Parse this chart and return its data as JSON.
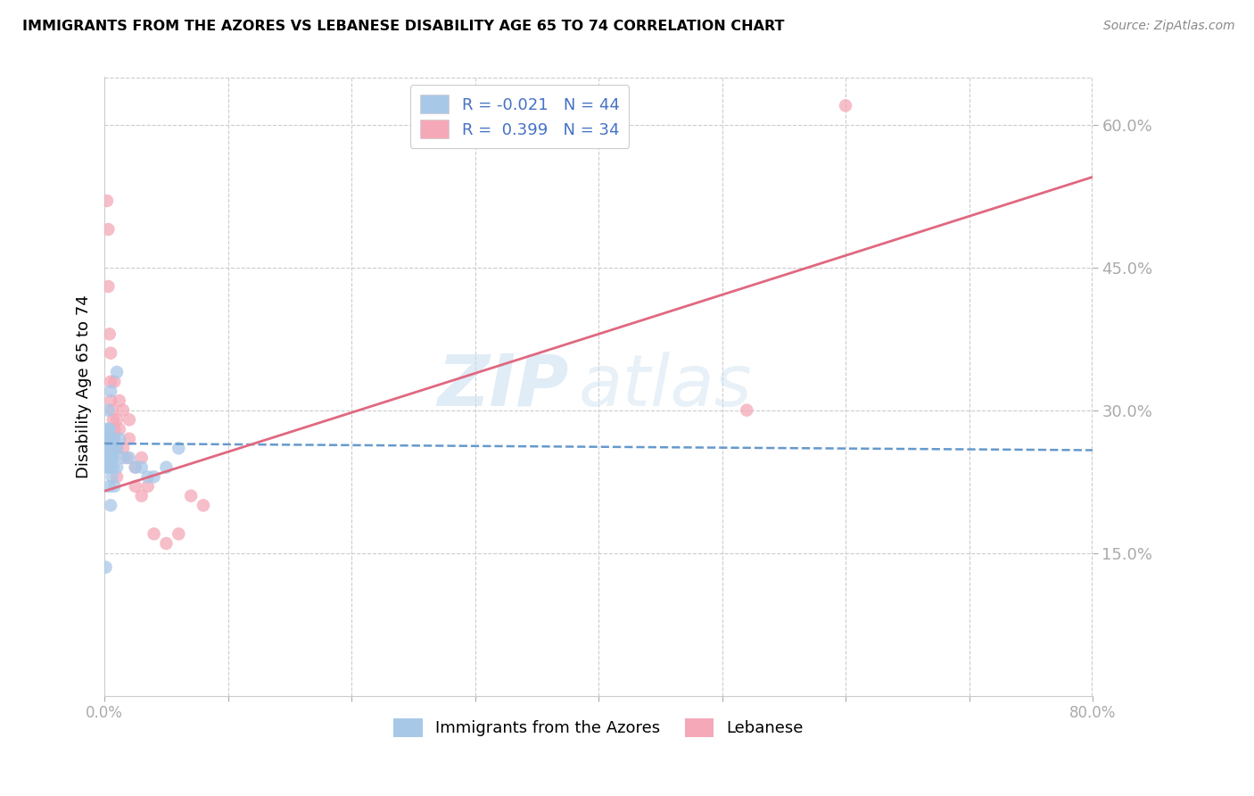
{
  "title": "IMMIGRANTS FROM THE AZORES VS LEBANESE DISABILITY AGE 65 TO 74 CORRELATION CHART",
  "source": "Source: ZipAtlas.com",
  "ylabel": "Disability Age 65 to 74",
  "xmin": 0.0,
  "xmax": 0.8,
  "ymin": 0.0,
  "ymax": 0.65,
  "yticks": [
    0.15,
    0.3,
    0.45,
    0.6
  ],
  "ytick_labels": [
    "15.0%",
    "30.0%",
    "45.0%",
    "60.0%"
  ],
  "xticks": [
    0.0,
    0.1,
    0.2,
    0.3,
    0.4,
    0.5,
    0.6,
    0.7,
    0.8
  ],
  "xtick_labels": [
    "0.0%",
    "",
    "",
    "",
    "",
    "",
    "",
    "",
    "80.0%"
  ],
  "grid_color": "#cccccc",
  "watermark_zip": "ZIP",
  "watermark_atlas": "atlas",
  "legend_R1": "-0.021",
  "legend_N1": "44",
  "legend_R2": "0.399",
  "legend_N2": "34",
  "color_azores": "#a8c8e8",
  "color_lebanese": "#f4a8b8",
  "color_azores_line": "#6699cc",
  "color_lebanese_line": "#e06880",
  "azores_line_x": [
    0.0,
    0.8
  ],
  "azores_line_y": [
    0.265,
    0.258
  ],
  "lebanese_line_x": [
    0.0,
    0.8
  ],
  "lebanese_line_y": [
    0.215,
    0.545
  ],
  "azores_x": [
    0.001,
    0.001,
    0.001,
    0.002,
    0.002,
    0.002,
    0.002,
    0.003,
    0.003,
    0.003,
    0.003,
    0.003,
    0.003,
    0.004,
    0.004,
    0.004,
    0.004,
    0.004,
    0.005,
    0.005,
    0.005,
    0.005,
    0.005,
    0.006,
    0.006,
    0.006,
    0.006,
    0.007,
    0.007,
    0.007,
    0.008,
    0.008,
    0.01,
    0.01,
    0.01,
    0.012,
    0.015,
    0.02,
    0.025,
    0.03,
    0.035,
    0.04,
    0.05,
    0.06
  ],
  "azores_y": [
    0.135,
    0.25,
    0.27,
    0.24,
    0.26,
    0.27,
    0.28,
    0.24,
    0.25,
    0.26,
    0.27,
    0.28,
    0.3,
    0.22,
    0.25,
    0.26,
    0.27,
    0.28,
    0.2,
    0.24,
    0.25,
    0.26,
    0.32,
    0.23,
    0.25,
    0.26,
    0.27,
    0.24,
    0.25,
    0.27,
    0.22,
    0.26,
    0.24,
    0.26,
    0.34,
    0.27,
    0.25,
    0.25,
    0.24,
    0.24,
    0.23,
    0.23,
    0.24,
    0.26
  ],
  "lebanese_x": [
    0.002,
    0.003,
    0.003,
    0.004,
    0.005,
    0.005,
    0.005,
    0.006,
    0.007,
    0.008,
    0.008,
    0.008,
    0.01,
    0.01,
    0.01,
    0.012,
    0.012,
    0.015,
    0.015,
    0.018,
    0.02,
    0.02,
    0.025,
    0.025,
    0.03,
    0.03,
    0.035,
    0.04,
    0.05,
    0.06,
    0.07,
    0.08,
    0.52,
    0.6
  ],
  "lebanese_y": [
    0.52,
    0.49,
    0.43,
    0.38,
    0.36,
    0.33,
    0.31,
    0.3,
    0.29,
    0.28,
    0.27,
    0.33,
    0.23,
    0.26,
    0.29,
    0.28,
    0.31,
    0.26,
    0.3,
    0.25,
    0.27,
    0.29,
    0.24,
    0.22,
    0.25,
    0.21,
    0.22,
    0.17,
    0.16,
    0.17,
    0.21,
    0.2,
    0.3,
    0.62
  ]
}
